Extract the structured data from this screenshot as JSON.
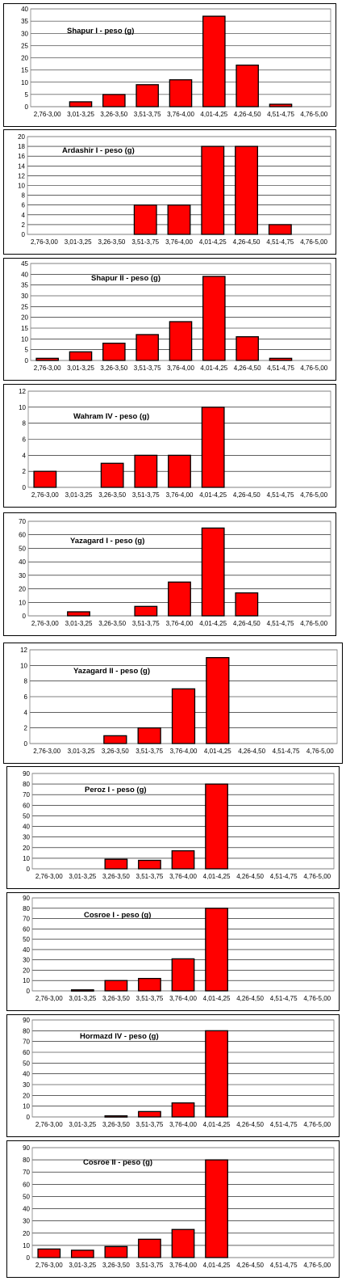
{
  "chart_data": [
    {
      "type": "bar",
      "title": "Shapur I - peso (g)",
      "categories": [
        "2,76-3,00",
        "3,01-3,25",
        "3,26-3,50",
        "3,51-3,75",
        "3,76-4,00",
        "4,01-4,25",
        "4,26-4,50",
        "4,51-4,75",
        "4,76-5,00"
      ],
      "values": [
        0,
        2,
        5,
        9,
        11,
        37,
        17,
        1,
        0
      ],
      "ylim": [
        0,
        40
      ],
      "yticks": [
        0,
        5,
        10,
        15,
        20,
        25,
        30,
        35,
        40
      ],
      "grid": true,
      "legend": "none"
    },
    {
      "type": "bar",
      "title": "Ardashir I - peso (g)",
      "categories": [
        "2,76-3,00",
        "3,01-3,25",
        "3,26-3,50",
        "3,51-3,75",
        "3,76-4,00",
        "4,01-4,25",
        "4,26-4,50",
        "4,51-4,75",
        "4,76-5,00"
      ],
      "values": [
        0,
        0,
        0,
        6,
        6,
        18,
        18,
        2,
        0
      ],
      "ylim": [
        0,
        20
      ],
      "yticks": [
        0,
        2,
        4,
        6,
        8,
        10,
        12,
        14,
        16,
        18,
        20
      ],
      "grid": true,
      "legend": "none"
    },
    {
      "type": "bar",
      "title": "Shapur II - peso (g)",
      "categories": [
        "2,76-3,00",
        "3,01-3,25",
        "3,26-3,50",
        "3,51-3,75",
        "3,76-4,00",
        "4,01-4,25",
        "4,26-4,50",
        "4,51-4,75",
        "4,76-5,00"
      ],
      "values": [
        1,
        4,
        8,
        12,
        18,
        39,
        11,
        1,
        0
      ],
      "ylim": [
        0,
        45
      ],
      "yticks": [
        0,
        5,
        10,
        15,
        20,
        25,
        30,
        35,
        40,
        45
      ],
      "grid": true,
      "legend": "none"
    },
    {
      "type": "bar",
      "title": "Wahram IV - peso (g)",
      "categories": [
        "2,76-3,00",
        "3,01-3,25",
        "3,26-3,50",
        "3,51-3,75",
        "3,76-4,00",
        "4,01-4,25",
        "4,26-4,50",
        "4,51-4,75",
        "4,76-5,00"
      ],
      "values": [
        2,
        0,
        3,
        4,
        4,
        10,
        0,
        0,
        0
      ],
      "ylim": [
        0,
        12
      ],
      "yticks": [
        0,
        2,
        4,
        6,
        8,
        10,
        12
      ],
      "grid": true,
      "legend": "none"
    },
    {
      "type": "bar",
      "title": "Yazagard I - peso (g)",
      "categories": [
        "2,76-3,00",
        "3,01-3,25",
        "3,26-3,50",
        "3,51-3,75",
        "3,76-4,00",
        "4,01-4,25",
        "4,26-4,50",
        "4,51-4,75",
        "4,76-5,00"
      ],
      "values": [
        0,
        3,
        0,
        7,
        25,
        65,
        17,
        0,
        0
      ],
      "ylim": [
        0,
        70
      ],
      "yticks": [
        0,
        10,
        20,
        30,
        40,
        50,
        60,
        70
      ],
      "grid": true,
      "legend": "none"
    },
    {
      "type": "bar",
      "title": "Yazagard II - peso (g)",
      "categories": [
        "2,76-3,00",
        "3,01-3,25",
        "3,26-3,50",
        "3,51-3,75",
        "3,76-4,00",
        "4,01-4,25",
        "4,26-4,50",
        "4,51-4,75",
        "4,76-5,00"
      ],
      "values": [
        0,
        0,
        1,
        2,
        7,
        11,
        0,
        0,
        0
      ],
      "ylim": [
        0,
        12
      ],
      "yticks": [
        0,
        2,
        4,
        6,
        8,
        10,
        12
      ],
      "grid": true,
      "legend": "none"
    },
    {
      "type": "bar",
      "title": "Peroz I - peso (g)",
      "categories": [
        "2,76-3,00",
        "3,01-3,25",
        "3,26-3,50",
        "3,51-3,75",
        "3,76-4,00",
        "4,01-4,25",
        "4,26-4,50",
        "4,51-4,75",
        "4,76-5,00"
      ],
      "values": [
        0,
        0,
        9,
        8,
        17,
        80,
        0,
        0,
        0
      ],
      "ylim": [
        0,
        90
      ],
      "yticks": [
        0,
        10,
        20,
        30,
        40,
        50,
        60,
        70,
        80,
        90
      ],
      "grid": true,
      "legend": "none"
    },
    {
      "type": "bar",
      "title": "Cosroe I - peso (g)",
      "categories": [
        "2,76-3,00",
        "3,01-3,25",
        "3,26-3,50",
        "3,51-3,75",
        "3,76-4,00",
        "4,01-4,25",
        "4,26-4,50",
        "4,51-4,75",
        "4,76-5,00"
      ],
      "values": [
        0,
        1,
        10,
        12,
        31,
        80,
        0,
        0,
        0
      ],
      "ylim": [
        0,
        90
      ],
      "yticks": [
        0,
        10,
        20,
        30,
        40,
        50,
        60,
        70,
        80,
        90
      ],
      "grid": true,
      "legend": "none"
    },
    {
      "type": "bar",
      "title": "Hormazd IV - peso (g)",
      "categories": [
        "2,76-3,00",
        "3,01-3,25",
        "3,26-3,50",
        "3,51-3,75",
        "3,76-4,00",
        "4,01-4,25",
        "4,26-4,50",
        "4,51-4,75",
        "4,76-5,00"
      ],
      "values": [
        0,
        0,
        1,
        5,
        13,
        80,
        0,
        0,
        0
      ],
      "ylim": [
        0,
        90
      ],
      "yticks": [
        0,
        10,
        20,
        30,
        40,
        50,
        60,
        70,
        80,
        90
      ],
      "grid": true,
      "legend": "none"
    },
    {
      "type": "bar",
      "title": "Cosroe II - peso (g)",
      "categories": [
        "2,76-3,00",
        "3,01-3,25",
        "3,26-3,50",
        "3,51-3,75",
        "3,76-4,00",
        "4,01-4,25",
        "4,26-4,50",
        "4,51-4,75",
        "4,76-5,00"
      ],
      "values": [
        7,
        6,
        9,
        15,
        23,
        80,
        0,
        0,
        0
      ],
      "ylim": [
        0,
        90
      ],
      "yticks": [
        0,
        10,
        20,
        30,
        40,
        50,
        60,
        70,
        80,
        90
      ],
      "grid": true,
      "legend": "none"
    }
  ],
  "colors": {
    "bar_fill": "#ff0000",
    "bar_stroke": "#000000",
    "grid": "#000000",
    "background": "#ffffff"
  }
}
